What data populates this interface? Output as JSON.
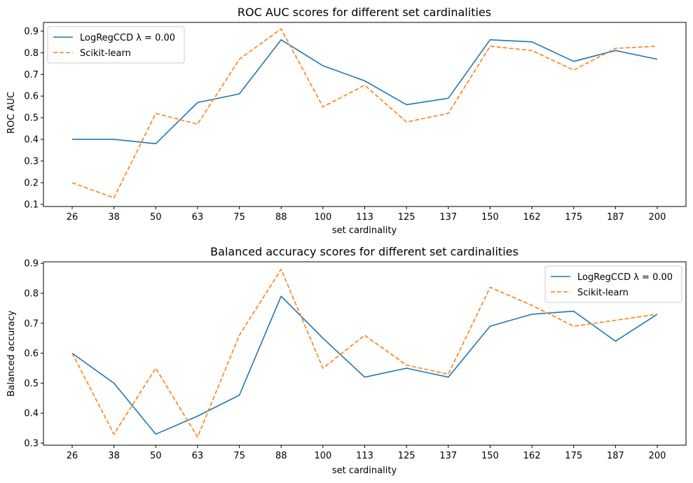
{
  "chart_data": [
    {
      "type": "line",
      "title": "ROC AUC scores for different set cardinalities",
      "xlabel": "set cardinality",
      "ylabel": "ROC AUC",
      "categories": [
        "26",
        "38",
        "50",
        "63",
        "75",
        "88",
        "100",
        "113",
        "125",
        "137",
        "150",
        "162",
        "175",
        "187",
        "200"
      ],
      "ylim": [
        0.09,
        0.94
      ],
      "yticks": [
        "0.1",
        "0.2",
        "0.3",
        "0.4",
        "0.5",
        "0.6",
        "0.7",
        "0.8",
        "0.9"
      ],
      "grid": false,
      "legend_position": "top-left",
      "series": [
        {
          "name": "LogRegCCD λ = 0.00",
          "color": "#1f77b4",
          "dash": "solid",
          "values": [
            0.4,
            0.4,
            0.38,
            0.57,
            0.61,
            0.86,
            0.74,
            0.67,
            0.56,
            0.59,
            0.86,
            0.85,
            0.76,
            0.81,
            0.77
          ]
        },
        {
          "name": "Scikit-learn",
          "color": "#ff7f0e",
          "dash": "dashed",
          "values": [
            0.2,
            0.13,
            0.52,
            0.47,
            0.77,
            0.91,
            0.55,
            0.65,
            0.48,
            0.52,
            0.83,
            0.81,
            0.72,
            0.82,
            0.83
          ]
        }
      ]
    },
    {
      "type": "line",
      "title": "Balanced accuracy scores for different set cardinalities",
      "xlabel": "set cardinality",
      "ylabel": "Balanced accuracy",
      "categories": [
        "26",
        "38",
        "50",
        "63",
        "75",
        "88",
        "100",
        "113",
        "125",
        "137",
        "150",
        "162",
        "175",
        "187",
        "200"
      ],
      "ylim": [
        0.293,
        0.905
      ],
      "yticks": [
        "0.3",
        "0.4",
        "0.5",
        "0.6",
        "0.7",
        "0.8",
        "0.9"
      ],
      "grid": false,
      "legend_position": "top-right",
      "series": [
        {
          "name": "LogRegCCD λ = 0.00",
          "color": "#1f77b4",
          "dash": "solid",
          "values": [
            0.6,
            0.5,
            0.33,
            0.39,
            0.46,
            0.79,
            0.65,
            0.52,
            0.55,
            0.52,
            0.69,
            0.73,
            0.74,
            0.64,
            0.73
          ]
        },
        {
          "name": "Scikit-learn",
          "color": "#ff7f0e",
          "dash": "dashed",
          "values": [
            0.6,
            0.33,
            0.55,
            0.32,
            0.66,
            0.88,
            0.55,
            0.66,
            0.56,
            0.53,
            0.82,
            0.76,
            0.69,
            0.71,
            0.73
          ]
        }
      ]
    }
  ]
}
